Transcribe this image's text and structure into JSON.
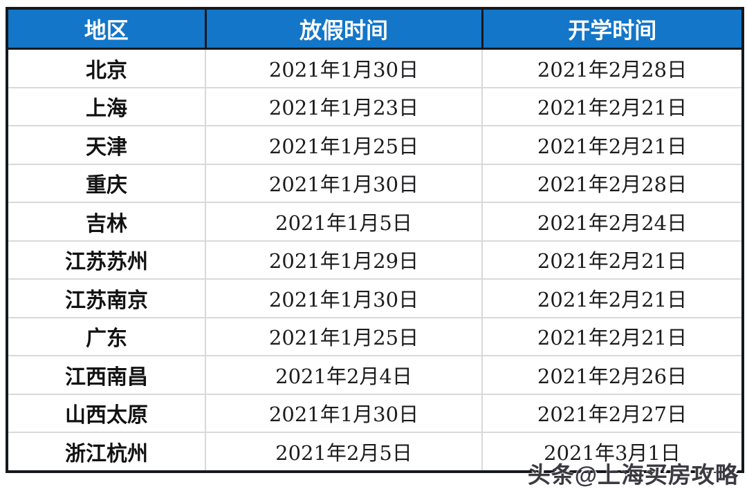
{
  "chart_data": {
    "type": "table",
    "title": "",
    "columns": [
      "地区",
      "放假时间",
      "开学时间"
    ],
    "rows": [
      [
        "北京",
        "2021年1月30日",
        "2021年2月28日"
      ],
      [
        "上海",
        "2021年1月23日",
        "2021年2月21日"
      ],
      [
        "天津",
        "2021年1月25日",
        "2021年2月21日"
      ],
      [
        "重庆",
        "2021年1月30日",
        "2021年2月28日"
      ],
      [
        "吉林",
        "2021年1月5日",
        "2021年2月24日"
      ],
      [
        "江苏苏州",
        "2021年1月29日",
        "2021年2月21日"
      ],
      [
        "江苏南京",
        "2021年1月30日",
        "2021年2月21日"
      ],
      [
        "广东",
        "2021年1月25日",
        "2021年2月21日"
      ],
      [
        "江西南昌",
        "2021年2月4日",
        "2021年2月26日"
      ],
      [
        "山西太原",
        "2021年1月30日",
        "2021年2月27日"
      ],
      [
        "浙江杭州",
        "2021年2月5日",
        "2021年3月1日"
      ]
    ]
  },
  "watermark": {
    "text": "头条@上海买房攻略"
  },
  "colors": {
    "header_bg": "#1476c8",
    "header_text": "#ffffff",
    "outer_border": "#15181d",
    "grid_line": "#d9d9d9",
    "body_text": "#1c1c1e",
    "watermark_text": "#3a3a40"
  }
}
